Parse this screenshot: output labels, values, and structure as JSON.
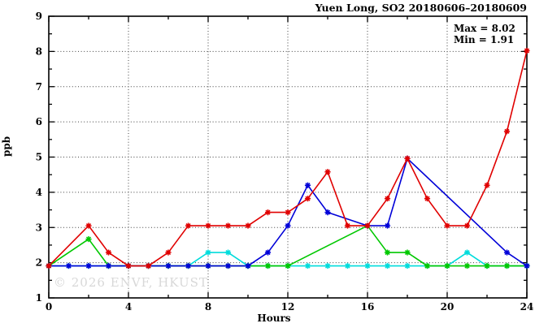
{
  "title": "Yuen Long, SO2 20180606–20180609",
  "annotation": {
    "max": "Max = 8.02",
    "min": "Min = 1.91"
  },
  "watermark": "© 2026 ENVF, HKUST",
  "chart_data": {
    "type": "line",
    "title": "Yuen Long, SO2 20180606–20180609",
    "xlabel": "Hours",
    "ylabel": "ppb",
    "xlim": [
      0,
      24
    ],
    "ylim": [
      1,
      9
    ],
    "x_major_ticks": [
      0,
      4,
      8,
      12,
      16,
      20,
      24
    ],
    "x_minor_ticks": [
      2,
      6,
      10,
      14,
      18,
      22
    ],
    "y_major_ticks": [
      1,
      2,
      3,
      4,
      5,
      6,
      7,
      8,
      9
    ],
    "y_minor_ticks": [
      1.5,
      2.5,
      3.5,
      4.5,
      5.5,
      6.5,
      7.5,
      8.5
    ],
    "x_gridlines": [
      4,
      8,
      12,
      16,
      20
    ],
    "y_gridlines": [
      2,
      3,
      4,
      5,
      6,
      7,
      8
    ],
    "grid": true,
    "legend_position": "none",
    "marker": "asterisk",
    "max_value": 8.02,
    "min_value": 1.91,
    "hours": [
      0,
      1,
      2,
      3,
      4,
      5,
      6,
      7,
      8,
      9,
      10,
      11,
      12,
      13,
      14,
      15,
      16,
      17,
      18,
      19,
      20,
      21,
      22,
      23,
      24
    ],
    "series": [
      {
        "name": "day-series-cyan",
        "color": "#00dcdc",
        "values": [
          1.91,
          1.91,
          1.91,
          1.91,
          1.91,
          1.91,
          1.91,
          1.91,
          2.29,
          2.29,
          1.91,
          1.91,
          1.91,
          1.91,
          1.91,
          1.91,
          1.91,
          1.91,
          1.91,
          1.91,
          1.91,
          2.29,
          1.91,
          1.91,
          1.91
        ]
      },
      {
        "name": "day-series-green",
        "color": "#00c800",
        "values": [
          1.91,
          null,
          2.67,
          1.91,
          1.91,
          1.91,
          1.91,
          1.91,
          1.91,
          1.91,
          1.91,
          1.91,
          1.91,
          null,
          null,
          null,
          3.05,
          2.29,
          2.29,
          1.91,
          1.91,
          1.91,
          1.91,
          1.91,
          1.91
        ]
      },
      {
        "name": "day-series-blue",
        "color": "#0000d8",
        "values": [
          1.91,
          1.91,
          1.91,
          1.91,
          1.91,
          1.91,
          1.91,
          1.91,
          1.91,
          1.91,
          1.91,
          2.29,
          3.05,
          4.2,
          3.43,
          null,
          3.05,
          3.05,
          4.96,
          null,
          null,
          null,
          null,
          2.29,
          1.91
        ]
      },
      {
        "name": "day-series-red",
        "color": "#e00000",
        "values": [
          1.91,
          null,
          3.05,
          2.29,
          1.91,
          1.91,
          2.29,
          3.05,
          3.05,
          3.05,
          3.05,
          3.43,
          3.43,
          3.82,
          4.58,
          3.05,
          3.05,
          3.82,
          4.96,
          3.82,
          3.05,
          3.05,
          4.2,
          5.73,
          8.02
        ]
      }
    ],
    "colors": {
      "axis": "#000000",
      "grid": "#404040",
      "background": "#ffffff"
    }
  }
}
